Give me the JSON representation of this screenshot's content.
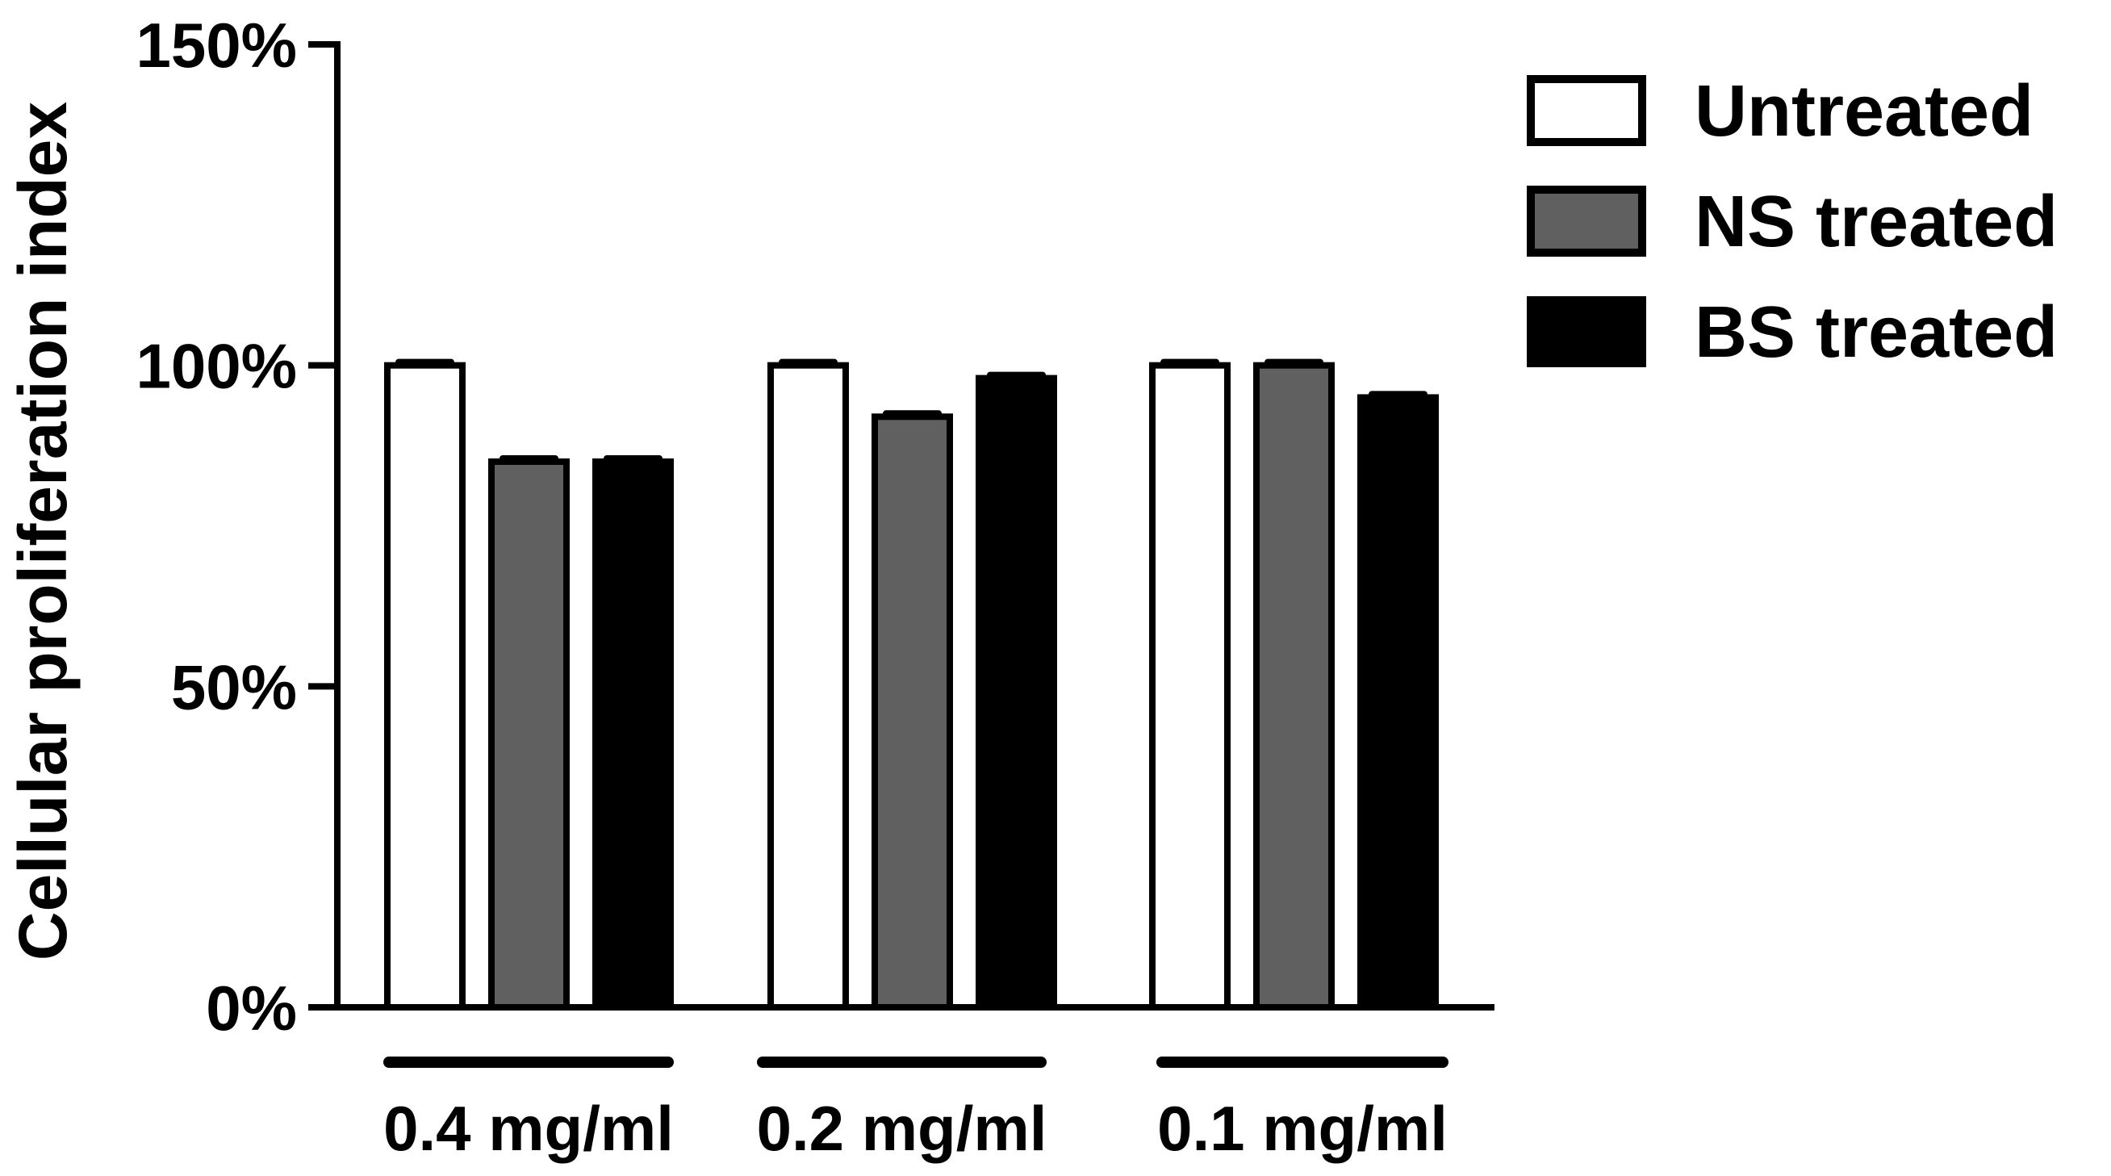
{
  "chart_data": {
    "type": "bar",
    "ylabel": "Cellular proliferation index",
    "xlabel": "",
    "ylim": [
      0,
      150
    ],
    "yticks": [
      0,
      50,
      100,
      150
    ],
    "ytick_labels": [
      "0%",
      "50%",
      "100%",
      "150%"
    ],
    "categories": [
      "0.4 mg/ml",
      "0.2 mg/ml",
      "0.1 mg/ml"
    ],
    "series": [
      {
        "name": "Untreated",
        "color": "#ffffff",
        "values": [
          100,
          100,
          100
        ]
      },
      {
        "name": "NS treated",
        "color": "#606060",
        "values": [
          85,
          92,
          100
        ]
      },
      {
        "name": "BS treated",
        "color": "#000000",
        "values": [
          85,
          98,
          95
        ]
      }
    ],
    "legend_position": "top-right",
    "grid": false
  }
}
